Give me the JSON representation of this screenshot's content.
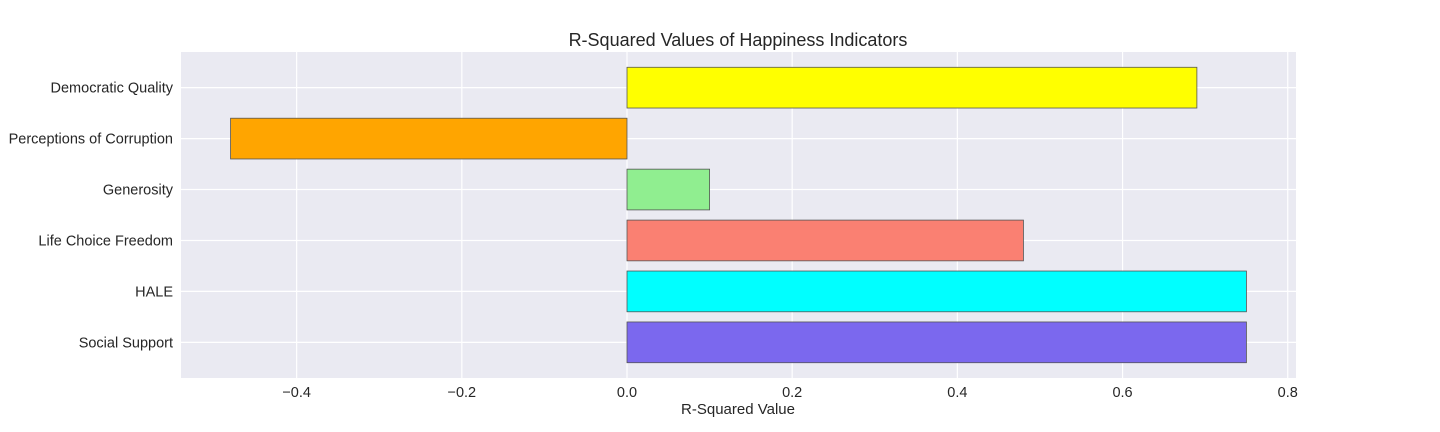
{
  "chart_data": {
    "type": "bar",
    "orientation": "horizontal",
    "title": "R-Squared Values of Happiness Indicators",
    "xlabel": "R-Squared Value",
    "ylabel": "",
    "xlim": [
      -0.54,
      0.81
    ],
    "xticks": [
      -0.4,
      -0.2,
      0.0,
      0.2,
      0.4,
      0.6,
      0.8
    ],
    "xtick_labels": [
      "−0.4",
      "−0.2",
      "0.0",
      "0.2",
      "0.4",
      "0.6",
      "0.8"
    ],
    "grid": true,
    "categories": [
      "Democratic Quality",
      "Perceptions of Corruption",
      "Generosity",
      "Life Choice Freedom",
      "HALE",
      "Social Support"
    ],
    "values": [
      0.69,
      -0.48,
      0.1,
      0.48,
      0.75,
      0.75
    ],
    "colors": [
      "#ffff00",
      "#ffa500",
      "#90ee90",
      "#fa8072",
      "#00ffff",
      "#7b68ee"
    ],
    "plot_background": "#eaeaf2",
    "edge_color": "#555555"
  }
}
